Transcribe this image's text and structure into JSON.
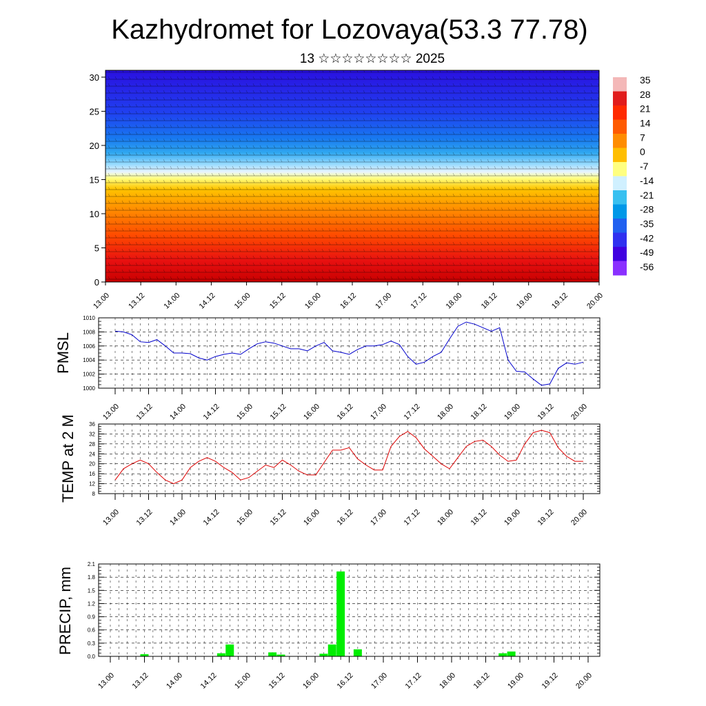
{
  "title": "Kazhydromet for Lozovaya(53.3 77.78)",
  "subtitle": "13 ☆☆☆☆☆☆☆☆ 2025",
  "time_labels": [
    "13.00",
    "13.12",
    "14.00",
    "14.12",
    "15.00",
    "15.12",
    "16.00",
    "16.12",
    "17.00",
    "17.12",
    "18.00",
    "18.12",
    "19.00",
    "19.12",
    "20.00"
  ],
  "chart_data": [
    {
      "type": "heatmap",
      "name": "vertical-cross-section",
      "x_labels": [
        "13.00",
        "13.12",
        "14.00",
        "14.12",
        "15.00",
        "15.12",
        "16.00",
        "16.12",
        "17.00",
        "17.12",
        "18.00",
        "18.12",
        "19.00",
        "19.12",
        "20.00"
      ],
      "y_ticks": [
        0,
        5,
        10,
        15,
        20,
        25,
        30
      ],
      "ylim": [
        0,
        31
      ],
      "colorbar": {
        "labels": [
          "35",
          "28",
          "21",
          "14",
          "7",
          "0",
          "-7",
          "-14",
          "-21",
          "-28",
          "-35",
          "-42",
          "-49",
          "-56"
        ],
        "colors": [
          "#f4b8b8",
          "#e11c1c",
          "#ff2a00",
          "#ff5a00",
          "#ff8c00",
          "#ffbe00",
          "#ffff80",
          "#d0f0ff",
          "#38c0f0",
          "#0098e8",
          "#2060f0",
          "#3030f0",
          "#4000e0",
          "#8a30ff"
        ]
      },
      "temperature_profile": [
        {
          "height": 0,
          "temp": 28
        },
        {
          "height": 3,
          "temp": 22
        },
        {
          "height": 7,
          "temp": 12
        },
        {
          "height": 11,
          "temp": 2
        },
        {
          "height": 14,
          "temp": -8
        },
        {
          "height": 17,
          "temp": -20
        },
        {
          "height": 20,
          "temp": -38
        },
        {
          "height": 25,
          "temp": -50
        },
        {
          "height": 31,
          "temp": -60
        }
      ],
      "has_wind_barbs": true
    },
    {
      "type": "line",
      "name": "pmsl",
      "ylabel": "PMSL",
      "ylim": [
        1000,
        1010
      ],
      "y_ticks": [
        1000,
        1002,
        1004,
        1006,
        1008,
        1010
      ],
      "x_labels": [
        "13.00",
        "13.12",
        "14.00",
        "14.12",
        "15.00",
        "15.12",
        "16.00",
        "16.12",
        "17.00",
        "17.12",
        "18.00",
        "18.12",
        "19.00",
        "19.12",
        "20.00"
      ],
      "x_range": [
        0,
        56
      ],
      "grid": true,
      "color": "#0000cc",
      "x": [
        0,
        1,
        2,
        3,
        4,
        5,
        6,
        7,
        8,
        9,
        10,
        11,
        12,
        13,
        14,
        15,
        16,
        17,
        18,
        19,
        20,
        21,
        22,
        23,
        24,
        25,
        26,
        27,
        28,
        29,
        30,
        31,
        32,
        33,
        34,
        35,
        36,
        37,
        38,
        39,
        40,
        41,
        42,
        43,
        44,
        45,
        46,
        47,
        48,
        49,
        50,
        51,
        52,
        53,
        54,
        55,
        56
      ],
      "values": [
        1008.1,
        1008.0,
        1007.6,
        1006.6,
        1006.5,
        1006.9,
        1006.0,
        1005.0,
        1005.0,
        1004.9,
        1004.3,
        1004.0,
        1004.5,
        1004.8,
        1005.0,
        1004.8,
        1005.6,
        1006.3,
        1006.6,
        1006.4,
        1006.0,
        1005.6,
        1005.6,
        1005.3,
        1006.0,
        1006.5,
        1005.3,
        1005.1,
        1004.8,
        1005.5,
        1006.0,
        1006.0,
        1006.2,
        1006.7,
        1006.2,
        1004.5,
        1003.4,
        1003.7,
        1004.5,
        1005.1,
        1007.0,
        1008.8,
        1009.4,
        1009.1,
        1008.6,
        1008.1,
        1008.6,
        1004.0,
        1002.4,
        1002.3,
        1001.3,
        1000.4,
        1000.6,
        1002.8,
        1003.6,
        1003.4,
        1003.7
      ]
    },
    {
      "type": "line",
      "name": "temp-2m",
      "ylabel": "TEMP at 2 M",
      "ylim": [
        8,
        36
      ],
      "y_ticks": [
        8,
        12,
        16,
        20,
        24,
        28,
        32,
        36
      ],
      "x_labels": [
        "13.00",
        "13.12",
        "14.00",
        "14.12",
        "15.00",
        "15.12",
        "16.00",
        "16.12",
        "17.00",
        "17.12",
        "18.00",
        "18.12",
        "19.00",
        "19.12",
        "20.00"
      ],
      "x_range": [
        0,
        56
      ],
      "grid": true,
      "color": "#dd0000",
      "x": [
        0,
        1,
        2,
        3,
        4,
        5,
        6,
        7,
        8,
        9,
        10,
        11,
        12,
        13,
        14,
        15,
        16,
        17,
        18,
        19,
        20,
        21,
        22,
        23,
        24,
        25,
        26,
        27,
        28,
        29,
        30,
        31,
        32,
        33,
        34,
        35,
        36,
        37,
        38,
        39,
        40,
        41,
        42,
        43,
        44,
        45,
        46,
        47,
        48,
        49,
        50,
        51,
        52,
        53,
        54,
        55,
        56
      ],
      "values": [
        13.5,
        18.0,
        20.0,
        21.5,
        20.0,
        16.5,
        13.5,
        12.0,
        13.5,
        18.5,
        21.0,
        22.5,
        21.0,
        18.5,
        16.5,
        13.5,
        14.5,
        17.0,
        19.5,
        18.5,
        21.5,
        19.5,
        17.0,
        15.5,
        15.5,
        20.5,
        25.5,
        25.5,
        26.5,
        22.0,
        19.5,
        17.5,
        17.5,
        27.0,
        31.0,
        33.0,
        30.5,
        26.0,
        23.0,
        20.0,
        18.0,
        22.5,
        27.0,
        29.0,
        29.5,
        27.0,
        23.5,
        21.0,
        21.5,
        28.0,
        32.5,
        33.5,
        32.5,
        26.5,
        23.0,
        21.0,
        21.0
      ]
    },
    {
      "type": "bar",
      "name": "precip",
      "ylabel": "PRECIP, mm",
      "ylim": [
        0,
        2.1
      ],
      "y_ticks": [
        "0.0",
        "0.3",
        "0.6",
        "0.9",
        "1.2",
        "1.5",
        "1.8",
        "2.1"
      ],
      "x_labels": [
        "13.00",
        "13.12",
        "14.00",
        "14.12",
        "15.00",
        "15.12",
        "16.00",
        "16.12",
        "17.00",
        "17.12",
        "18.00",
        "18.12",
        "19.00",
        "19.12",
        "20.00"
      ],
      "x_range": [
        0,
        56
      ],
      "grid": true,
      "color": "#00ee00",
      "bars": [
        {
          "x": 4,
          "value": 0.05
        },
        {
          "x": 13,
          "value": 0.07
        },
        {
          "x": 14,
          "value": 0.27
        },
        {
          "x": 19,
          "value": 0.09
        },
        {
          "x": 20,
          "value": 0.04
        },
        {
          "x": 25,
          "value": 0.06
        },
        {
          "x": 26,
          "value": 0.27
        },
        {
          "x": 27,
          "value": 1.93
        },
        {
          "x": 29,
          "value": 0.16
        },
        {
          "x": 46,
          "value": 0.07
        },
        {
          "x": 47,
          "value": 0.11
        }
      ]
    }
  ]
}
